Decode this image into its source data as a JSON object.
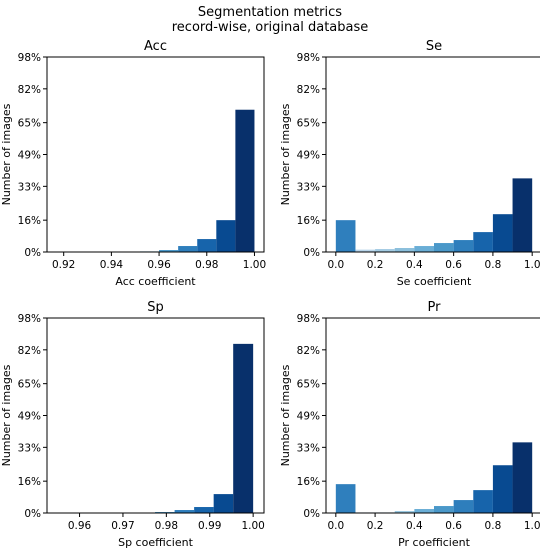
{
  "figure": {
    "title_line1": "Segmentation metrics",
    "title_line2": "record-wise, original database"
  },
  "chart_data": [
    {
      "type": "bar",
      "title": "Acc",
      "xlabel": "Acc coefficient",
      "ylabel": "Number of images",
      "xlim": [
        0.913,
        1.004
      ],
      "xticks": [
        0.92,
        0.94,
        0.96,
        0.98,
        1.0
      ],
      "xtick_labels": [
        "0.92",
        "0.94",
        "0.96",
        "0.98",
        "1.00"
      ],
      "ylim": [
        0,
        98
      ],
      "yticks": [
        0,
        16,
        33,
        49,
        65,
        82,
        98
      ],
      "ytick_labels": [
        "0%",
        "16%",
        "33%",
        "49%",
        "65%",
        "82%",
        "98%"
      ],
      "bins": [
        [
          0.92,
          0.928
        ],
        [
          0.928,
          0.936
        ],
        [
          0.936,
          0.944
        ],
        [
          0.944,
          0.952
        ],
        [
          0.952,
          0.96
        ],
        [
          0.96,
          0.968
        ],
        [
          0.968,
          0.976
        ],
        [
          0.976,
          0.984
        ],
        [
          0.984,
          0.992
        ],
        [
          0.992,
          1.0
        ]
      ],
      "values": [
        0.1,
        0.1,
        0.1,
        0.2,
        0.3,
        1.0,
        3.0,
        6.5,
        16.0,
        71.5
      ],
      "colors": [
        "#dbe9f6",
        "#cde0f1",
        "#b7d4ea",
        "#9ac8e0",
        "#6aaed6",
        "#4a98c9",
        "#2e7ebc",
        "#1764ab",
        "#084a91",
        "#08306b"
      ]
    },
    {
      "type": "bar",
      "title": "Se",
      "xlabel": "Se coefficient",
      "ylabel": "Number of images",
      "xlim": [
        -0.05,
        1.05
      ],
      "xticks": [
        0.0,
        0.2,
        0.4,
        0.6,
        0.8,
        1.0
      ],
      "xtick_labels": [
        "0.0",
        "0.2",
        "0.4",
        "0.6",
        "0.8",
        "1.0"
      ],
      "ylim": [
        0,
        98
      ],
      "yticks": [
        0,
        16,
        33,
        49,
        65,
        82,
        98
      ],
      "ytick_labels": [
        "0%",
        "16%",
        "33%",
        "49%",
        "65%",
        "82%",
        "98%"
      ],
      "bins": [
        [
          0.0,
          0.1
        ],
        [
          0.1,
          0.2
        ],
        [
          0.2,
          0.3
        ],
        [
          0.3,
          0.4
        ],
        [
          0.4,
          0.5
        ],
        [
          0.5,
          0.6
        ],
        [
          0.6,
          0.7
        ],
        [
          0.7,
          0.8
        ],
        [
          0.8,
          0.9
        ],
        [
          0.9,
          1.0
        ]
      ],
      "values": [
        16.0,
        1.2,
        1.5,
        2.0,
        3.0,
        4.5,
        6.0,
        10.0,
        19.0,
        37.0
      ],
      "colors": [
        "#2f7fbd",
        "#bad6eb",
        "#a4cce3",
        "#8bbfdc",
        "#6aaed6",
        "#4a98c9",
        "#2e7ebc",
        "#1764ab",
        "#084a91",
        "#08306b"
      ]
    },
    {
      "type": "bar",
      "title": "Sp",
      "xlabel": "Sp coefficient",
      "ylabel": "Number of images",
      "xlim": [
        0.9525,
        1.0025
      ],
      "xticks": [
        0.96,
        0.97,
        0.98,
        0.99,
        1.0
      ],
      "xtick_labels": [
        "0.96",
        "0.97",
        "0.98",
        "0.99",
        "1.00"
      ],
      "ylim": [
        0,
        98
      ],
      "yticks": [
        0,
        16,
        33,
        49,
        65,
        82,
        98
      ],
      "ytick_labels": [
        "0%",
        "16%",
        "33%",
        "49%",
        "65%",
        "82%",
        "98%"
      ],
      "bins": [
        [
          0.9549,
          0.9594
        ],
        [
          0.9594,
          0.9639
        ],
        [
          0.9639,
          0.9684
        ],
        [
          0.9684,
          0.9729
        ],
        [
          0.9729,
          0.9774
        ],
        [
          0.9774,
          0.9819
        ],
        [
          0.9819,
          0.9864
        ],
        [
          0.9864,
          0.9909
        ],
        [
          0.9909,
          0.9954
        ],
        [
          0.9954,
          1.0
        ]
      ],
      "values": [
        0.1,
        0.1,
        0.1,
        0.1,
        0.2,
        0.5,
        1.5,
        3.0,
        9.5,
        85.0
      ],
      "colors": [
        "#dbe9f6",
        "#cde0f1",
        "#b7d4ea",
        "#9ac8e0",
        "#6aaed6",
        "#4a98c9",
        "#2e7ebc",
        "#1764ab",
        "#084a91",
        "#08306b"
      ]
    },
    {
      "type": "bar",
      "title": "Pr",
      "xlabel": "Pr coefficient",
      "ylabel": "Number of images",
      "xlim": [
        -0.05,
        1.05
      ],
      "xticks": [
        0.0,
        0.2,
        0.4,
        0.6,
        0.8,
        1.0
      ],
      "xtick_labels": [
        "0.0",
        "0.2",
        "0.4",
        "0.6",
        "0.8",
        "1.0"
      ],
      "ylim": [
        0,
        98
      ],
      "yticks": [
        0,
        16,
        33,
        49,
        65,
        82,
        98
      ],
      "ytick_labels": [
        "0%",
        "16%",
        "33%",
        "49%",
        "65%",
        "82%",
        "98%"
      ],
      "bins": [
        [
          0.0,
          0.1
        ],
        [
          0.1,
          0.2
        ],
        [
          0.2,
          0.3
        ],
        [
          0.3,
          0.4
        ],
        [
          0.4,
          0.5
        ],
        [
          0.5,
          0.6
        ],
        [
          0.6,
          0.7
        ],
        [
          0.7,
          0.8
        ],
        [
          0.8,
          0.9
        ],
        [
          0.9,
          1.0
        ]
      ],
      "values": [
        14.5,
        0.3,
        0.3,
        1.0,
        2.0,
        3.5,
        6.5,
        11.5,
        24.0,
        35.5
      ],
      "colors": [
        "#2f7fbd",
        "#cde0f1",
        "#b7d4ea",
        "#9ac8e0",
        "#6aaed6",
        "#4a98c9",
        "#2e7ebc",
        "#1764ab",
        "#084a91",
        "#08306b"
      ]
    }
  ]
}
